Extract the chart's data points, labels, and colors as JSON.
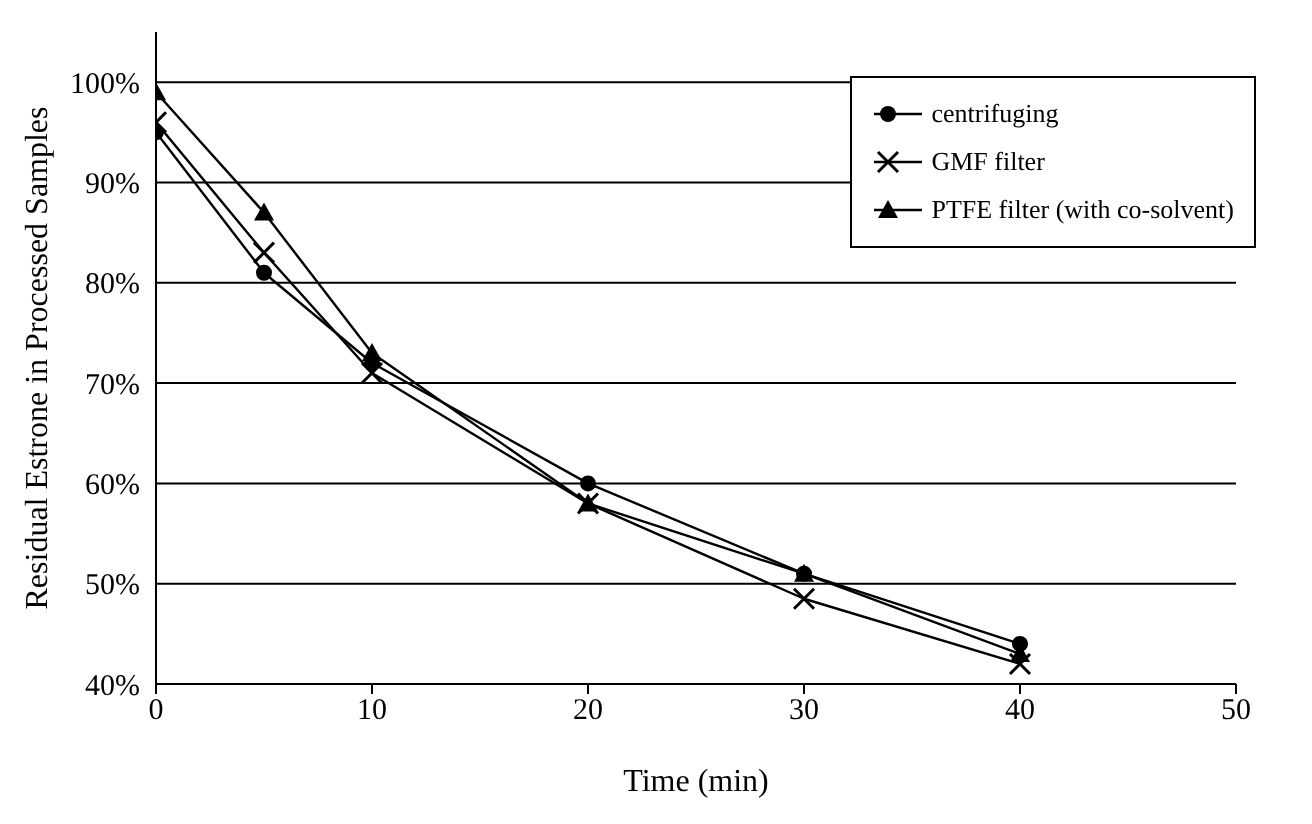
{
  "chart_data": {
    "type": "line",
    "xlabel": "Time (min)",
    "ylabel": "Residual Estrone in Processed Samples",
    "x": [
      0,
      5,
      10,
      20,
      30,
      40
    ],
    "series": [
      {
        "name": "centrifuging",
        "color": "#000000",
        "marker": "circle",
        "values": [
          95,
          81,
          72,
          60,
          51,
          44
        ]
      },
      {
        "name": "GMF filter",
        "color": "#000000",
        "marker": "cross",
        "values": [
          96,
          83,
          71,
          58,
          48.5,
          42
        ]
      },
      {
        "name": "PTFE filter (with co-solvent)",
        "color": "#000000",
        "marker": "triangle",
        "values": [
          99,
          87,
          73,
          58,
          51,
          43
        ]
      }
    ],
    "xlim": [
      0,
      50
    ],
    "xticks": [
      0,
      10,
      20,
      30,
      40,
      50
    ],
    "ylim": [
      40,
      105
    ],
    "yticks": [
      {
        "value": 40,
        "label": "40%"
      },
      {
        "value": 50,
        "label": "50%"
      },
      {
        "value": 60,
        "label": "60%"
      },
      {
        "value": 70,
        "label": "70%"
      },
      {
        "value": 80,
        "label": "80%"
      },
      {
        "value": 90,
        "label": "90%"
      },
      {
        "value": 100,
        "label": "100%"
      }
    ],
    "grid": "y",
    "legend": "top right",
    "line_style": "solid"
  }
}
